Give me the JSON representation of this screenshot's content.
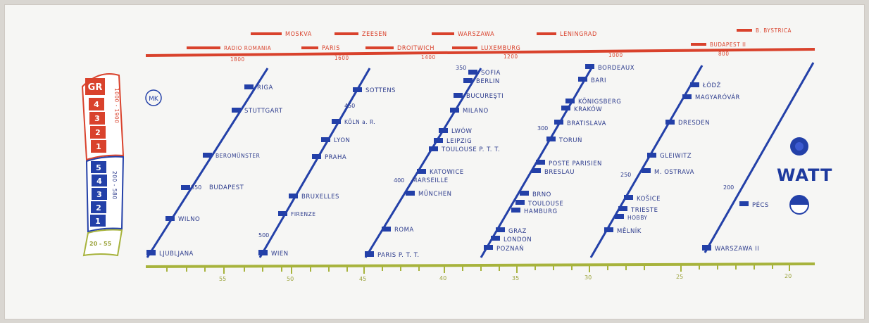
{
  "colors": {
    "red": "#d9422c",
    "blue": "#2340a8",
    "green": "#a7b33c",
    "paper": "#f6f6f4"
  },
  "lw_top_row": [
    "MOSKVA",
    "ZEESEN",
    "WARSZAWA",
    "LENINGRAD",
    "B. BYSTRICA"
  ],
  "lw_bottom_row": [
    "RADIO ROMANIA",
    "PARIS",
    "DROITWICH",
    "LUXEMBURG",
    "BUDAPEST II"
  ],
  "lw_scale_ticks": [
    "1800",
    "1600",
    "1400",
    "1200",
    "1000",
    "800"
  ],
  "mw_columns": [
    {
      "stations": [
        "RIGA",
        "STUTTGART",
        "BEROMÜNSTER",
        "BUDAPEST",
        "WILNO",
        "LJUBLJANA"
      ],
      "marks": [
        "550"
      ]
    },
    {
      "stations": [
        "SOTTENS",
        "KÖLN a. R.",
        "LYON",
        "PRAHA",
        "BRUXELLES",
        "FIRENZE",
        "WIEN"
      ],
      "marks": [
        "450",
        "500"
      ]
    },
    {
      "stations": [
        "SOFIA",
        "BERLIN",
        "BUCUREŞTI",
        "MILANO",
        "LWÓW",
        "LEIPZIG",
        "TOULOUSE P. T. T.",
        "KATOWICE",
        "MARSEILLE",
        "MÜNCHEN",
        "ROMA",
        "PARIS P. T. T."
      ],
      "marks": [
        "350",
        "400"
      ]
    },
    {
      "stations": [
        "BORDEAUX",
        "BARI",
        "KÖNIGSBERG",
        "KRAKÓW",
        "BRATISLAVA",
        "TORUŃ",
        "POSTE PARISIEN",
        "BRESLAU",
        "BRNO",
        "TOULOUSE",
        "HAMBURG",
        "GRAZ",
        "LONDON",
        "POZNAŃ"
      ],
      "marks": [
        "300"
      ]
    },
    {
      "stations": [
        "ŁÓDŹ",
        "MAGYARÓVÁR",
        "DRESDEN",
        "GLEIWITZ",
        "M. OSTRAVA",
        "KOŠICE",
        "TRIESTE",
        "HOBBY",
        "MĚLNÍK"
      ],
      "marks": [
        "250"
      ]
    },
    {
      "stations": [
        "PÉCS",
        "WARSZAWA II"
      ],
      "marks": [
        "200"
      ]
    }
  ],
  "dial_ticks": [
    "55",
    "50",
    "45",
    "40",
    "35",
    "30",
    "25",
    "20"
  ],
  "wave_knob": {
    "gr_label": "GR",
    "gr_numbers": [
      "4",
      "3",
      "2",
      "1"
    ],
    "gr_range": "1000 - 1900",
    "mw_numbers": [
      "5",
      "4",
      "3",
      "2",
      "1"
    ],
    "mw_range": "200 - 580",
    "sw_label": "20 - 55"
  },
  "logo_text": "MK",
  "watt_label": "WATT"
}
